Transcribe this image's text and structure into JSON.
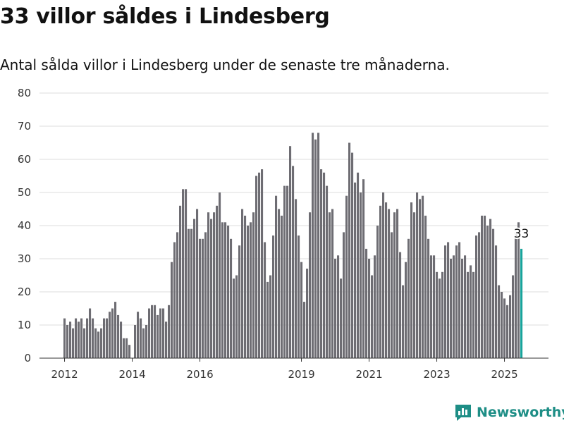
{
  "header": {
    "title": "33 villor såldes i Lindesberg",
    "subtitle": "Antal sålda villor i Lindesberg under de senaste tre månaderna."
  },
  "brand": {
    "name": "Newsworthy",
    "color": "#1e8e86"
  },
  "colors": {
    "bar": "#6e6d73",
    "highlight": "#19a49c",
    "grid": "#dddddd",
    "axis": "#333333"
  },
  "chart_data": {
    "type": "bar",
    "title": "33 villor såldes i Lindesberg",
    "subtitle": "Antal sålda villor i Lindesberg under de senaste tre månaderna.",
    "xlabel": "",
    "ylabel": "",
    "x_start": "2012-01",
    "x_interval": "month",
    "x_ticks": [
      "2012",
      "2014",
      "2016",
      "2019",
      "2021",
      "2023",
      "2025"
    ],
    "ylim": [
      0,
      80
    ],
    "y_ticks": [
      0,
      10,
      20,
      30,
      40,
      50,
      60,
      70,
      80
    ],
    "grid": true,
    "legend": "none",
    "values": [
      12,
      10,
      11,
      9,
      12,
      11,
      12,
      9,
      12,
      15,
      12,
      9,
      8,
      9,
      12,
      12,
      14,
      15,
      17,
      13,
      11,
      6,
      6,
      4,
      0,
      10,
      14,
      12,
      9,
      10,
      15,
      16,
      16,
      13,
      15,
      15,
      11,
      16,
      29,
      35,
      38,
      46,
      51,
      51,
      39,
      39,
      42,
      45,
      36,
      36,
      38,
      44,
      42,
      44,
      46,
      50,
      41,
      41,
      40,
      36,
      24,
      25,
      34,
      45,
      43,
      40,
      41,
      44,
      55,
      56,
      57,
      35,
      23,
      25,
      37,
      49,
      45,
      43,
      52,
      52,
      64,
      58,
      48,
      37,
      29,
      17,
      27,
      44,
      68,
      66,
      68,
      57,
      56,
      52,
      44,
      45,
      30,
      31,
      24,
      38,
      49,
      65,
      62,
      53,
      56,
      50,
      54,
      33,
      30,
      25,
      31,
      40,
      46,
      50,
      47,
      45,
      38,
      44,
      45,
      32,
      22,
      29,
      36,
      47,
      44,
      50,
      48,
      49,
      43,
      36,
      31,
      31,
      26,
      24,
      26,
      34,
      35,
      30,
      31,
      34,
      35,
      30,
      31,
      26,
      28,
      26,
      37,
      38,
      43,
      43,
      40,
      42,
      39,
      34,
      22,
      20,
      18,
      16,
      19,
      25,
      38,
      41,
      33
    ],
    "highlight_last": true,
    "annotations": [
      {
        "label": "33",
        "series_index": 162,
        "value": 33
      }
    ]
  }
}
